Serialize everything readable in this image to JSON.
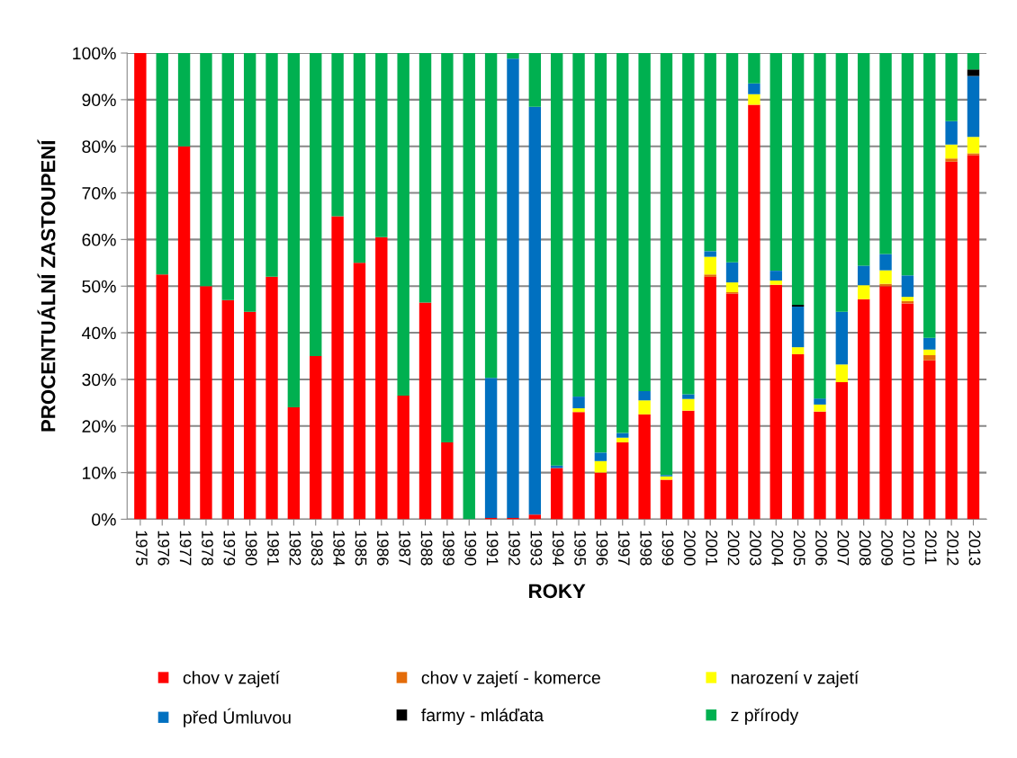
{
  "chart_data": {
    "type": "bar",
    "stacked": true,
    "xlabel": "ROKY",
    "ylabel": "PROCENTUÁLNÍ ZASTOUPENÍ",
    "categories": [
      "1975",
      "1976",
      "1977",
      "1978",
      "1979",
      "1980",
      "1981",
      "1982",
      "1983",
      "1984",
      "1985",
      "1986",
      "1987",
      "1988",
      "1989",
      "1990",
      "1991",
      "1992",
      "1993",
      "1994",
      "1995",
      "1996",
      "1997",
      "1998",
      "1999",
      "2000",
      "2001",
      "2002",
      "2003",
      "2004",
      "2005",
      "2006",
      "2007",
      "2008",
      "2009",
      "2010",
      "2011",
      "2012",
      "2013"
    ],
    "series": [
      {
        "name": "chov v zajetí",
        "color": "#ff0000",
        "values": [
          100,
          52.5,
          80,
          50,
          47,
          44.5,
          52,
          24,
          35,
          65,
          55,
          60.5,
          26.5,
          46.5,
          16.5,
          0,
          0.3,
          0.3,
          1,
          11,
          23,
          10,
          16.5,
          22.5,
          8.5,
          23.3,
          52,
          48.4,
          88.9,
          50.3,
          35.4,
          23.1,
          29.4,
          47.2,
          50,
          46.3,
          34.1,
          76.7,
          78.1
        ]
      },
      {
        "name": "chov v zajetí - komerce",
        "color": "#e46c0a",
        "values": [
          0,
          0,
          0,
          0,
          0,
          0,
          0,
          0,
          0,
          0,
          0,
          0,
          0,
          0,
          0,
          0,
          0,
          0,
          0,
          0,
          0,
          0,
          0,
          0,
          0,
          0,
          0.5,
          0.3,
          0,
          0,
          0,
          0,
          0,
          0,
          0.5,
          0.5,
          1.1,
          0.7,
          0.4
        ]
      },
      {
        "name": "narození v zajetí",
        "color": "#ffff00",
        "values": [
          0,
          0,
          0,
          0,
          0,
          0,
          0,
          0,
          0,
          0,
          0,
          0,
          0,
          0,
          0,
          0,
          0,
          0,
          0,
          0,
          0.8,
          2.5,
          1,
          3,
          0.7,
          2.5,
          3.8,
          2.1,
          2.3,
          0.9,
          1.5,
          1.5,
          3.8,
          3,
          2.9,
          0.9,
          1.2,
          3,
          3.5
        ]
      },
      {
        "name": "před Úmluvou",
        "color": "#0070c0",
        "values": [
          0,
          0,
          0,
          0,
          0,
          0,
          0,
          0,
          0,
          0,
          0,
          0,
          0,
          0,
          0,
          0,
          30,
          98.5,
          87.5,
          0.5,
          2.5,
          1.8,
          1,
          2,
          0.3,
          1,
          1.2,
          4.3,
          2.3,
          2.1,
          8.7,
          1.3,
          11.3,
          4.2,
          3.5,
          4.6,
          2.5,
          5,
          13.1
        ]
      },
      {
        "name": "farmy - mláďata",
        "color": "#000000",
        "values": [
          0,
          0,
          0,
          0,
          0,
          0,
          0,
          0,
          0,
          0,
          0,
          0,
          0,
          0,
          0,
          0,
          0,
          0,
          0,
          0,
          0,
          0,
          0,
          0,
          0,
          0,
          0,
          0,
          0,
          0,
          0.4,
          0,
          0,
          0,
          0,
          0,
          0,
          0,
          1.4
        ]
      },
      {
        "name": "z přírody",
        "color": "#00b050",
        "values": [
          0,
          47.5,
          20,
          50,
          53,
          55.5,
          48,
          76,
          65,
          35,
          45,
          39.5,
          73.5,
          53.5,
          83.5,
          100,
          69.7,
          1.2,
          11.5,
          88.5,
          73.7,
          85.7,
          81.5,
          72.5,
          90.5,
          73.2,
          42.5,
          44.9,
          6.5,
          46.7,
          54,
          74.1,
          55.5,
          45.6,
          43.1,
          47.7,
          61.1,
          14.6,
          3.5
        ]
      }
    ],
    "ylim": [
      0,
      100
    ],
    "yticks": [
      {
        "value": 0,
        "label": "0%"
      },
      {
        "value": 10,
        "label": "10%"
      },
      {
        "value": 20,
        "label": "20%"
      },
      {
        "value": 30,
        "label": "30%"
      },
      {
        "value": 40,
        "label": "40%"
      },
      {
        "value": 50,
        "label": "50%"
      },
      {
        "value": 60,
        "label": "60%"
      },
      {
        "value": 70,
        "label": "70%"
      },
      {
        "value": 80,
        "label": "80%"
      },
      {
        "value": 90,
        "label": "90%"
      },
      {
        "value": 100,
        "label": "100%"
      }
    ],
    "grid": "y",
    "legend": "bottom"
  }
}
